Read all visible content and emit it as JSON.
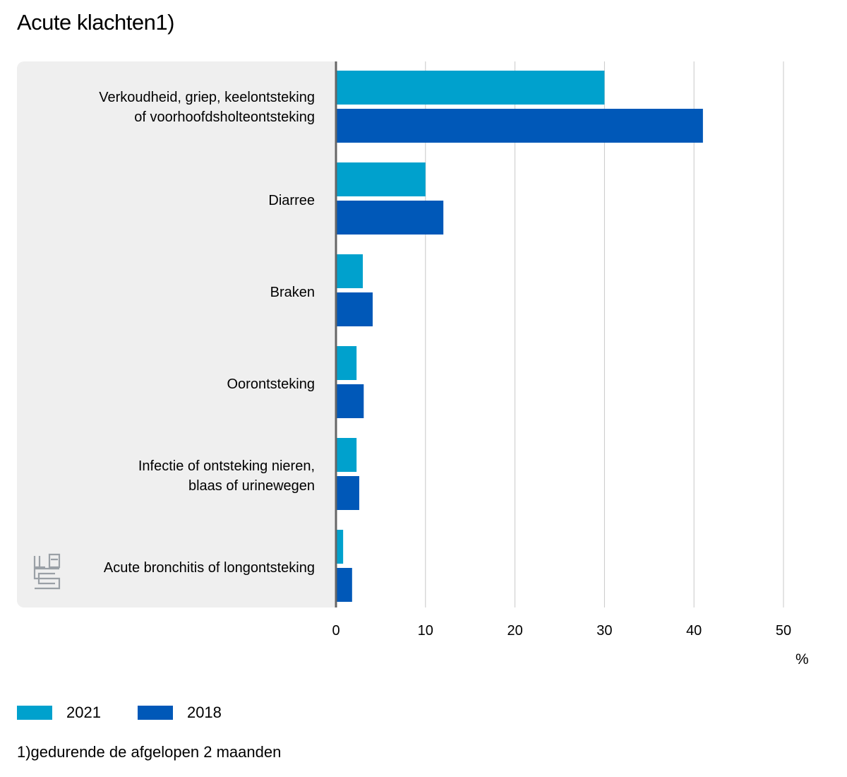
{
  "chart_data": {
    "type": "bar",
    "orientation": "horizontal",
    "title": "Acute klachten1)",
    "categories": [
      [
        "Verkoudheid, griep, keelontsteking",
        "of voorhoofdsholteontsteking"
      ],
      [
        "Diarree"
      ],
      [
        "Braken"
      ],
      [
        "Oorontsteking"
      ],
      [
        "Infectie of ontsteking nieren,",
        "blaas of urinewegen"
      ],
      [
        "Acute bronchitis of longontsteking"
      ]
    ],
    "series": [
      {
        "name": "2021",
        "color": "#00a1cd",
        "values": [
          30.0,
          10.0,
          3.0,
          2.3,
          2.3,
          0.8
        ]
      },
      {
        "name": "2018",
        "color": "#0058b8",
        "values": [
          41.0,
          12.0,
          4.1,
          3.1,
          2.6,
          1.8
        ]
      }
    ],
    "xlim": [
      0,
      50
    ],
    "xticks": [
      "0",
      "10",
      "20",
      "30",
      "40",
      "50"
    ],
    "xlabel": "%",
    "grid": true,
    "legend_position": "bottom-left"
  },
  "footnote": "1)gedurende de afgelopen 2 maanden",
  "logo": {
    "icon": "cbs-logo-icon",
    "color": "#9aa0a6"
  }
}
